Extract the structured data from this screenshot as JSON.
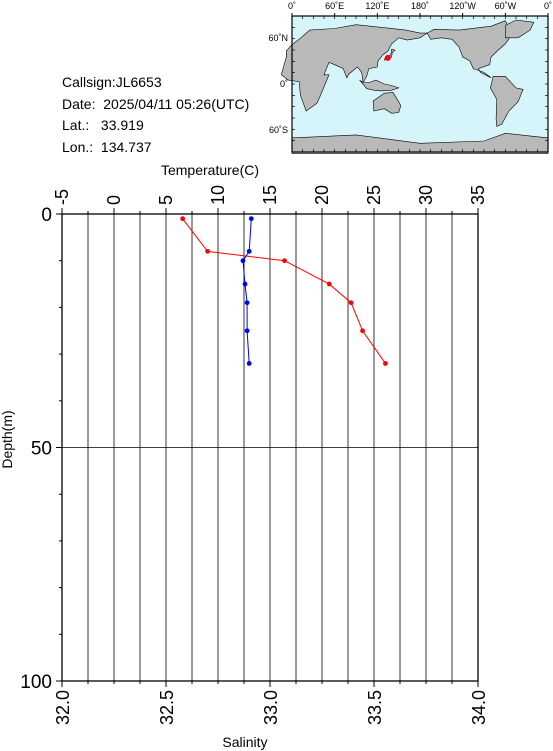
{
  "station": {
    "callsign": "Callsign:JL6653",
    "date": "Date:  2025/04/11 05:26(UTC)",
    "lat": "Lat.:   33.919",
    "lon": "Lon.:  134.737"
  },
  "map": {
    "top_labels": [
      "0˚",
      "60˚E",
      "120˚E",
      "180˚",
      "120˚W",
      "60˚W",
      "0˚"
    ],
    "left_labels": [
      "60˚N",
      "0˚",
      "60˚S"
    ],
    "marker_lat": 33.919,
    "marker_lon": 134.737,
    "ocean_color": "#d6f5fb",
    "land_color": "#b9b9b9",
    "marker_color": "#ff0000"
  },
  "chart_data": {
    "type": "line",
    "title": "",
    "temperature_axis": {
      "label": "Temperature(C)",
      "range": [
        -5,
        35
      ],
      "ticks": [
        -5,
        0,
        5,
        10,
        15,
        20,
        25,
        30,
        35
      ]
    },
    "salinity_axis": {
      "label": "Salinity",
      "range": [
        32.0,
        34.0
      ],
      "ticks": [
        "32.0",
        "32.5",
        "33.0",
        "33.5",
        "34.0"
      ]
    },
    "depth_axis": {
      "label": "Depth(m)",
      "range": [
        0,
        100
      ],
      "ticks": [
        0,
        50,
        100
      ],
      "inverted": true
    },
    "series": [
      {
        "color": "#ff0000",
        "axis": "temperature",
        "points": [
          {
            "depth": 1,
            "value": 6.6
          },
          {
            "depth": 8,
            "value": 9.0
          },
          {
            "depth": 10,
            "value": 16.4
          },
          {
            "depth": 15,
            "value": 20.7
          },
          {
            "depth": 19,
            "value": 22.8
          },
          {
            "depth": 25,
            "value": 23.9
          },
          {
            "depth": 32,
            "value": 26.1
          }
        ]
      },
      {
        "color": "#0000ff",
        "axis": "salinity",
        "points": [
          {
            "depth": 1,
            "value": 32.91
          },
          {
            "depth": 8,
            "value": 32.9
          },
          {
            "depth": 10,
            "value": 32.87
          },
          {
            "depth": 15,
            "value": 32.88
          },
          {
            "depth": 19,
            "value": 32.89
          },
          {
            "depth": 25,
            "value": 32.89
          },
          {
            "depth": 32,
            "value": 32.9
          }
        ]
      }
    ],
    "grid": true
  }
}
